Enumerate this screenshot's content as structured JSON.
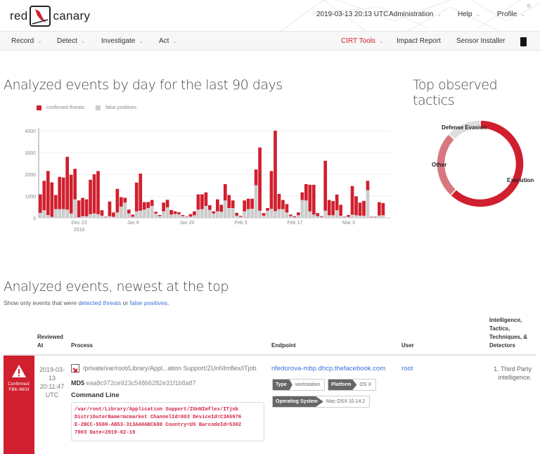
{
  "header": {
    "logo_left": "red",
    "logo_right": "canary",
    "timestamp": "2019-03-13 20:13 UTC",
    "menus": [
      "Administration",
      "Help",
      "Profile"
    ]
  },
  "nav": {
    "left": [
      "Record",
      "Detect",
      "Investigate",
      "Act"
    ],
    "cirt_tools": "CIRT Tools",
    "impact_report": "Impact Report",
    "sensor_installer": "Sensor Installer"
  },
  "colors": {
    "brand_red": "#d01f2e",
    "false_positive_gray": "#cccccc",
    "other_pink": "#d9777f",
    "link_blue": "#3b6fd8"
  },
  "events_chart": {
    "title": "Analyzed events by day for the last 90 days"
  },
  "tactics_chart": {
    "title": "Top observed tactics"
  },
  "chart_data": [
    {
      "type": "bar",
      "stacked": true,
      "legend_position": "top-left",
      "grid": true,
      "ylim": [
        0,
        4000
      ],
      "y_ticks": [
        "0",
        "1000",
        "2000",
        "3000",
        "4000"
      ],
      "x_ticks": [
        {
          "label": "Dec 23",
          "sublabel": "2018",
          "date": "2018-12-23"
        },
        {
          "label": "Jan 6",
          "date": "2019-01-06"
        },
        {
          "label": "Jan 20",
          "date": "2019-01-20"
        },
        {
          "label": "Feb 3",
          "date": "2019-02-03"
        },
        {
          "label": "Feb 17",
          "date": "2019-02-17"
        },
        {
          "label": "Mar 3",
          "date": "2019-03-03"
        }
      ],
      "x": [
        "2018-12-13",
        "2018-12-14",
        "2018-12-15",
        "2018-12-16",
        "2018-12-17",
        "2018-12-18",
        "2018-12-19",
        "2018-12-20",
        "2018-12-21",
        "2018-12-22",
        "2018-12-23",
        "2018-12-24",
        "2018-12-25",
        "2018-12-26",
        "2018-12-27",
        "2018-12-28",
        "2018-12-29",
        "2018-12-30",
        "2018-12-31",
        "2019-01-01",
        "2019-01-02",
        "2019-01-03",
        "2019-01-04",
        "2019-01-05",
        "2019-01-06",
        "2019-01-07",
        "2019-01-08",
        "2019-01-09",
        "2019-01-10",
        "2019-01-11",
        "2019-01-12",
        "2019-01-13",
        "2019-01-14",
        "2019-01-15",
        "2019-01-16",
        "2019-01-17",
        "2019-01-18",
        "2019-01-19",
        "2019-01-20",
        "2019-01-21",
        "2019-01-22",
        "2019-01-23",
        "2019-01-24",
        "2019-01-25",
        "2019-01-26",
        "2019-01-27",
        "2019-01-28",
        "2019-01-29",
        "2019-01-30",
        "2019-01-31",
        "2019-02-01",
        "2019-02-02",
        "2019-02-03",
        "2019-02-04",
        "2019-02-05",
        "2019-02-06",
        "2019-02-07",
        "2019-02-08",
        "2019-02-09",
        "2019-02-10",
        "2019-02-11",
        "2019-02-12",
        "2019-02-13",
        "2019-02-14",
        "2019-02-15",
        "2019-02-16",
        "2019-02-17",
        "2019-02-18",
        "2019-02-19",
        "2019-02-20",
        "2019-02-21",
        "2019-02-22",
        "2019-02-23",
        "2019-02-24",
        "2019-02-25",
        "2019-02-26",
        "2019-02-27",
        "2019-02-28",
        "2019-03-01",
        "2019-03-02",
        "2019-03-03",
        "2019-03-04",
        "2019-03-05",
        "2019-03-06",
        "2019-03-07",
        "2019-03-08",
        "2019-03-09",
        "2019-03-10",
        "2019-03-11",
        "2019-03-12"
      ],
      "series": [
        {
          "name": "false positives",
          "color": "#cccccc",
          "values": [
            230,
            350,
            130,
            50,
            400,
            400,
            400,
            380,
            200,
            850,
            30,
            80,
            70,
            170,
            200,
            170,
            100,
            30,
            80,
            50,
            250,
            520,
            700,
            200,
            50,
            300,
            330,
            380,
            450,
            550,
            200,
            80,
            300,
            480,
            150,
            180,
            170,
            80,
            40,
            60,
            120,
            380,
            400,
            550,
            370,
            200,
            300,
            280,
            800,
            450,
            450,
            100,
            50,
            300,
            400,
            420,
            1500,
            330,
            100,
            330,
            420,
            310,
            400,
            400,
            250,
            80,
            30,
            120,
            820,
            800,
            300,
            150,
            80,
            50,
            330,
            120,
            120,
            350,
            100,
            40,
            50,
            150,
            120,
            100,
            100,
            1270,
            30,
            30,
            110,
            120
          ]
        },
        {
          "name": "confirmed threats",
          "color": "#d01f2e",
          "values": [
            850,
            1350,
            2020,
            1580,
            650,
            1480,
            1450,
            2420,
            1780,
            1400,
            770,
            840,
            780,
            1580,
            1800,
            1980,
            250,
            20,
            670,
            200,
            1080,
            430,
            220,
            180,
            100,
            1320,
            1700,
            340,
            280,
            270,
            80,
            50,
            400,
            350,
            210,
            120,
            90,
            50,
            20,
            110,
            180,
            700,
            680,
            620,
            210,
            100,
            550,
            320,
            750,
            600,
            350,
            130,
            40,
            500,
            480,
            460,
            720,
            2900,
            120,
            120,
            1730,
            3690,
            700,
            420,
            380,
            70,
            40,
            130,
            350,
            750,
            1220,
            1370,
            140,
            30,
            2290,
            700,
            650,
            720,
            500,
            20,
            80,
            1310,
            870,
            600,
            680,
            430,
            20,
            20,
            610,
            560
          ]
        }
      ]
    },
    {
      "type": "pie",
      "donut": true,
      "slices": [
        {
          "label": "Execution",
          "value": 62,
          "color": "#d01f2e"
        },
        {
          "label": "Other",
          "value": 25,
          "color": "#d9777f"
        },
        {
          "label": "Defense Evasion",
          "value": 13,
          "color": "#dddddd"
        }
      ]
    }
  ],
  "events": {
    "title": "Analyzed events, newest at the top",
    "filter_prefix": "Show only events that were",
    "filter_threats": "detected threats",
    "filter_or": "or",
    "filter_fp": "false positives",
    "filter_suffix": ".",
    "columns": [
      "Reviewed At",
      "Process",
      "Endpoint",
      "User",
      "Intelligence, Tactics, Techniques, & Detectors"
    ],
    "rows": [
      {
        "status": "Confirmed:",
        "id": "FBK-9603",
        "reviewed": [
          "2019-03-",
          "13",
          "20:11:47",
          "UTC"
        ],
        "process_path": "/private/var/root/Library/Appl...ation Support/ZUnNImflex/ITjob",
        "md5_label": "MD5",
        "md5": "eaa8c972ce923c54866282e31f1b8a87",
        "cmd_label": "Command Line",
        "cmd": [
          "/var/root/Library/Application Support/ZUnNImflex/ITjob",
          "DistributerName=mcmarket ChannelId=003 DeviceId=C3A5976",
          "E-2BCC-5580-AB53-313AA0ABC688 Country=US BarcodeId=5302",
          "7003 Date=2019-02-19"
        ],
        "endpoint": "nfedorova-mbp.dhcp.thefacebook.com",
        "tags": [
          {
            "key": "Type",
            "value": "workstation"
          },
          {
            "key": "Platform",
            "value": "OS X"
          },
          {
            "key": "Operating System",
            "value": "Mac OSX 10.14.2"
          }
        ],
        "user": "root",
        "intel": [
          "1. Third Party",
          "intelligence."
        ]
      }
    ]
  }
}
